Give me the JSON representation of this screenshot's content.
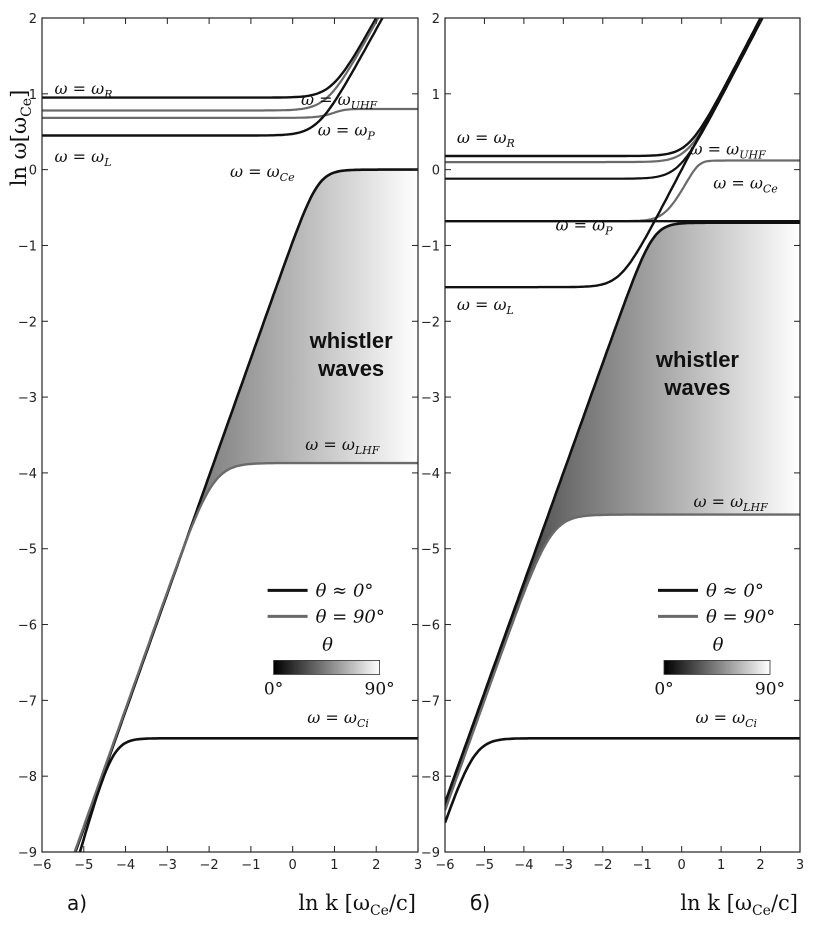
{
  "shared": {
    "ylabel": "ln ω[ω",
    "ylabel_sub": "Ce",
    "ylabel_end": "]",
    "xlabel": "ln k [ω",
    "xlabel_sub": "Ce",
    "xlabel_end": "/c]",
    "xlim": [
      -6,
      3
    ],
    "ylim": [
      -9,
      2
    ],
    "x_ticks": [
      "−6",
      "−5",
      "−4",
      "−3",
      "−2",
      "−1",
      "0",
      "1",
      "2",
      "3"
    ],
    "y_ticks": [
      "2",
      "1",
      "0",
      "−1",
      "−2",
      "−3",
      "−4",
      "−5",
      "−6",
      "−7",
      "−8",
      "−9"
    ],
    "region_label": [
      "whistler",
      "waves"
    ],
    "legend": {
      "entry1": "θ ≈ 0°",
      "entry2": "θ = 90°",
      "colorbar_title": "θ",
      "colorbar_min": "0°",
      "colorbar_max": "90°"
    },
    "colors": {
      "theta0": "#111111",
      "theta90": "#6a6a6a",
      "fill_dark": "#0c0c0c",
      "fill_light": "#ffffff"
    }
  },
  "chart_data": [
    {
      "type": "line",
      "panel": "а)",
      "grid": false,
      "legend_position": "lower-right",
      "levels": {
        "R": 0.95,
        "UHF": 0.78,
        "P": 0.72,
        "L": 0.45,
        "Ce": 0.0,
        "LHF": -3.87,
        "Ci": -7.5
      },
      "level_labels": [
        {
          "id": "R",
          "text": "ω = ω",
          "sub": "R",
          "x": -5.7,
          "y": 1.0
        },
        {
          "id": "UHF",
          "text": "ω = ω",
          "sub": "UHF",
          "x": 0.2,
          "y": 0.85
        },
        {
          "id": "P",
          "text": "ω = ω",
          "sub": "P",
          "x": 0.6,
          "y": 0.45
        },
        {
          "id": "L",
          "text": "ω = ω",
          "sub": "L",
          "x": -5.7,
          "y": 0.1
        },
        {
          "id": "Ce",
          "text": "ω = ω",
          "sub": "Ce",
          "x": -1.5,
          "y": -0.1
        },
        {
          "id": "LHF",
          "text": "ω = ω",
          "sub": "LHF",
          "x": 0.3,
          "y": -3.7
        },
        {
          "id": "Ci",
          "text": "ω = ω",
          "sub": "Ci",
          "x": 0.35,
          "y": -7.3
        }
      ],
      "region_pos": {
        "x": 1.4,
        "y": -2.35
      },
      "legend_pos": {
        "x": -0.6,
        "y": -5.55
      },
      "series": [
        {
          "kind": "light",
          "x": [
            -6,
            -5.5,
            -5,
            -4.5,
            -4,
            -3.5,
            -3,
            -2.5,
            -2,
            -1.5,
            -1,
            -0.5,
            0,
            0.5,
            1,
            1.5,
            2,
            2.5,
            3
          ]
        },
        {
          "kind": "R_branch",
          "x": [
            -6,
            -3,
            -2,
            -1,
            -0.5,
            0,
            0.5,
            1,
            1.5
          ]
        },
        {
          "kind": "P_branch",
          "x": [
            -6,
            -3,
            -2,
            -1,
            -0.5,
            0,
            0.5,
            1,
            1.5,
            2,
            2.5,
            3
          ]
        },
        {
          "kind": "L_branch",
          "x": [
            -6,
            -3,
            -2,
            -1,
            -0.5,
            0,
            0.5,
            1,
            1.5
          ]
        },
        {
          "kind": "UHF_branch",
          "x": [
            -6,
            -3,
            -2,
            -1,
            -0.5,
            0,
            0.5,
            1,
            1.5,
            2,
            2.5,
            3
          ]
        },
        {
          "kind": "whistler",
          "x": [
            -5.4,
            -5,
            -4.5,
            -4,
            -3.5,
            -3,
            -2.5,
            -2,
            -1.5,
            -1,
            -0.5,
            0,
            0.5,
            1,
            1.5,
            2,
            2.5,
            3
          ]
        },
        {
          "kind": "lowerhybrid",
          "x": [
            -5.4,
            -5,
            -4.5,
            -4,
            -3.5,
            -3,
            -2.5,
            -2,
            -1.5,
            -1,
            -0.5,
            0,
            0.5,
            1,
            1.5,
            2,
            2.5,
            3
          ]
        },
        {
          "kind": "ion",
          "x": [
            -5.4,
            -5,
            -4.5,
            -4,
            -3.5,
            -3,
            -2.5,
            -2,
            -1.5,
            -1,
            -0.5,
            0,
            0.5,
            1,
            1.5,
            2,
            2.5,
            3
          ]
        }
      ]
    },
    {
      "type": "line",
      "panel": "б)",
      "grid": false,
      "legend_position": "lower-right",
      "levels": {
        "R": 0.18,
        "UHF": 0.1,
        "P": -0.68,
        "L": -1.55,
        "Ce": 0.0,
        "Cetop": -0.7,
        "LHF": -4.55,
        "Ci": -7.5
      },
      "level_labels": [
        {
          "id": "R",
          "text": "ω = ω",
          "sub": "R",
          "x": -5.7,
          "y": 0.35
        },
        {
          "id": "UHF",
          "text": "ω = ω",
          "sub": "UHF",
          "x": 0.2,
          "y": 0.2
        },
        {
          "id": "Ce",
          "text": "ω = ω",
          "sub": "Ce",
          "x": 0.8,
          "y": -0.25
        },
        {
          "id": "P",
          "text": "ω = ω",
          "sub": "P",
          "x": -3.2,
          "y": -0.8
        },
        {
          "id": "L",
          "text": "ω = ω",
          "sub": "L",
          "x": -5.7,
          "y": -1.85
        },
        {
          "id": "LHF",
          "text": "ω = ω",
          "sub": "LHF",
          "x": 0.3,
          "y": -4.45
        },
        {
          "id": "Ci",
          "text": "ω = ω",
          "sub": "Ci",
          "x": 0.35,
          "y": -7.3
        }
      ],
      "region_pos": {
        "x": 0.4,
        "y": -2.6
      },
      "legend_pos": {
        "x": -0.6,
        "y": -5.55
      },
      "series": [
        {
          "kind": "light",
          "x": [
            -6,
            -5.5,
            -5,
            -4.5,
            -4,
            -3.5,
            -3,
            -2.5,
            -2,
            -1.5,
            -1,
            -0.5,
            0,
            0.5,
            1,
            1.5,
            2,
            2.5,
            3
          ]
        },
        {
          "kind": "R_branch",
          "x": [
            -6,
            -3,
            -2,
            -1,
            -0.5,
            0,
            0.5,
            1,
            1.5
          ]
        },
        {
          "kind": "P_branch",
          "x": [
            -6,
            -3,
            -2,
            -1,
            -0.5,
            0,
            0.5,
            1,
            1.5,
            2,
            2.5,
            3
          ]
        },
        {
          "kind": "L_branch",
          "x": [
            -6,
            -3,
            -2,
            -1,
            -0.5,
            0,
            0.5,
            1,
            1.5
          ]
        },
        {
          "kind": "UHF_branch",
          "x": [
            -6,
            -3,
            -2,
            -1,
            -0.5,
            0,
            0.5,
            1,
            1.5,
            2,
            2.5,
            3
          ]
        },
        {
          "kind": "whistler",
          "x": [
            -6,
            -5.5,
            -5,
            -4.5,
            -4,
            -3.5,
            -3,
            -2.5,
            -2,
            -1.5,
            -1,
            -0.5,
            0,
            0.5,
            1,
            1.5,
            2,
            2.5,
            3
          ]
        },
        {
          "kind": "lowerhybrid",
          "x": [
            -6,
            -5.5,
            -5,
            -4.5,
            -4,
            -3.5,
            -3,
            -2.5,
            -2,
            -1.5,
            -1,
            -0.5,
            0,
            0.5,
            1,
            1.5,
            2,
            2.5,
            3
          ]
        },
        {
          "kind": "ion",
          "x": [
            -6,
            -5.5,
            -5,
            -4.5,
            -4,
            -3.5,
            -3,
            -2.5,
            -2,
            -1.5,
            -1,
            -0.5,
            0,
            0.5,
            1,
            1.5,
            2,
            2.5,
            3
          ]
        }
      ]
    }
  ]
}
